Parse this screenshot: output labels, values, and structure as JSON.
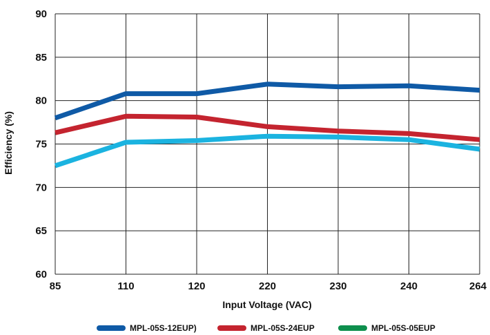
{
  "chart_data": {
    "type": "line",
    "title": "",
    "xlabel": "Input Voltage (VAC)",
    "ylabel": "Efficiency (%)",
    "categories": [
      "85",
      "110",
      "120",
      "220",
      "230",
      "240",
      "264"
    ],
    "ylim": [
      60,
      90
    ],
    "yticks": [
      "60",
      "65",
      "70",
      "75",
      "80",
      "85",
      "90"
    ],
    "grid": true,
    "legend_position": "bottom",
    "series": [
      {
        "name": "MPL-05S-12EUP)",
        "color": "#0f5aa6",
        "values": [
          78.0,
          80.8,
          80.8,
          81.9,
          81.6,
          81.7,
          81.2
        ]
      },
      {
        "name": "MPL-05S-24EUP",
        "color": "#c4242f",
        "values": [
          76.3,
          78.2,
          78.1,
          77.0,
          76.5,
          76.2,
          75.5
        ]
      },
      {
        "name": "MPL-05S-05EUP",
        "color": "#1bb3e0",
        "legend_color": "#0e8f4d",
        "values": [
          72.5,
          75.2,
          75.4,
          75.9,
          75.8,
          75.5,
          74.4
        ]
      }
    ]
  }
}
